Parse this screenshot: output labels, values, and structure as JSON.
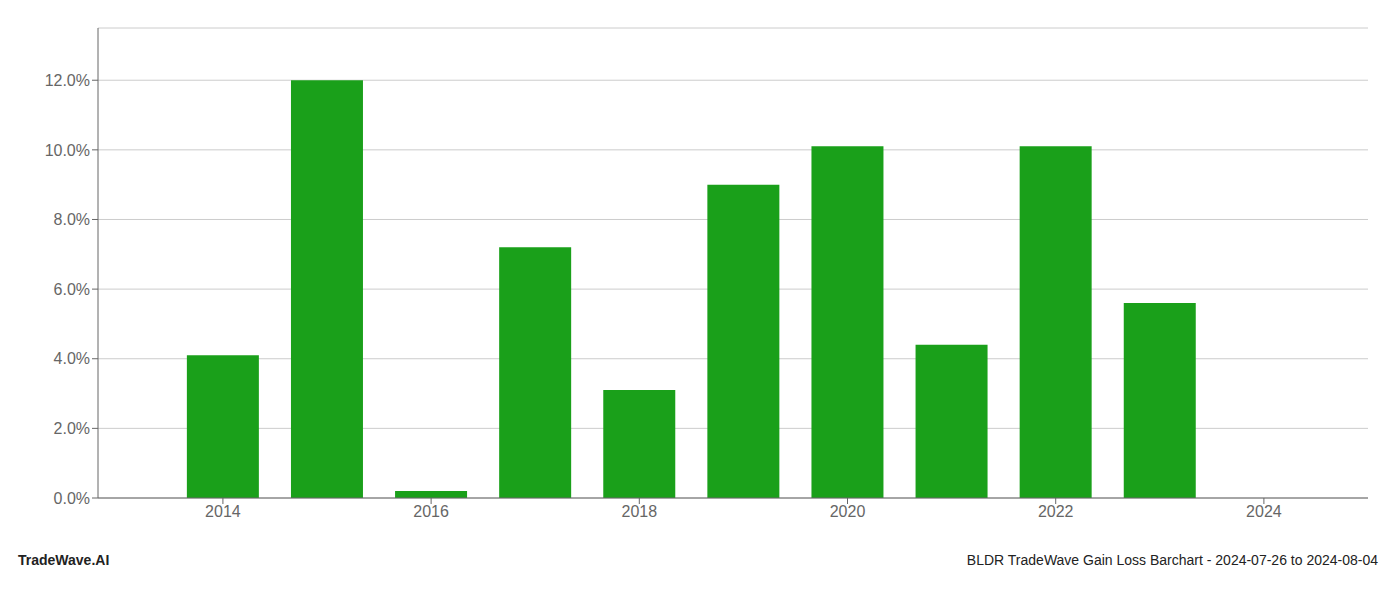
{
  "chart_data": {
    "type": "bar",
    "x": [
      2014,
      2015,
      2016,
      2017,
      2018,
      2019,
      2020,
      2021,
      2022,
      2023
    ],
    "values": [
      0.041,
      0.12,
      0.002,
      0.072,
      0.031,
      0.09,
      0.101,
      0.044,
      0.101,
      0.056
    ],
    "color": "#1aA01a",
    "xlim": [
      2012.8,
      2025.0
    ],
    "xticks": [
      2014,
      2016,
      2018,
      2020,
      2022,
      2024
    ],
    "ylim": [
      0,
      0.135
    ],
    "yticks": [
      {
        "value": 0.0,
        "label": "0.0%"
      },
      {
        "value": 0.02,
        "label": "2.0%"
      },
      {
        "value": 0.04,
        "label": "4.0%"
      },
      {
        "value": 0.06,
        "label": "6.0%"
      },
      {
        "value": 0.08,
        "label": "8.0%"
      },
      {
        "value": 0.1,
        "label": "10.0%"
      },
      {
        "value": 0.12,
        "label": "12.0%"
      }
    ],
    "grid": true,
    "annotations": [
      "TradeWave.AI",
      "BLDR TradeWave Gain Loss Barchart - 2024-07-26 to 2024-08-04"
    ]
  }
}
